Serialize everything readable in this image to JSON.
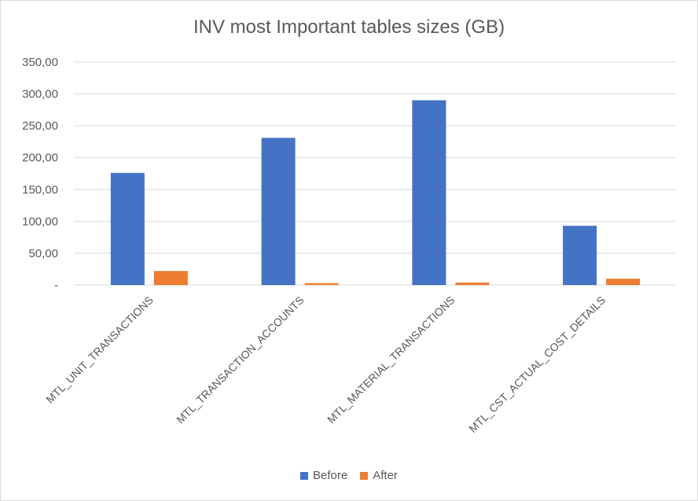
{
  "chart_data": {
    "type": "bar",
    "title": "INV most Important tables sizes (GB)",
    "categories": [
      "MTL_UNIT_TRANSACTIONS",
      "MTL_TRANSACTION_ACCOUNTS",
      "MTL_MATERIAL_TRANSACTIONS",
      "MTL_CST_ACTUAL_COST_DETAILS"
    ],
    "series": [
      {
        "name": "Before",
        "color": "#4472c4",
        "values": [
          176,
          231,
          290,
          93
        ]
      },
      {
        "name": "After",
        "color": "#ed7d31",
        "values": [
          22,
          3,
          4,
          10
        ]
      }
    ],
    "ylim": [
      0,
      350
    ],
    "y_ticks": [
      "-",
      "50,00",
      "100,00",
      "150,00",
      "200,00",
      "250,00",
      "300,00",
      "350,00"
    ],
    "y_tick_values": [
      0,
      50,
      100,
      150,
      200,
      250,
      300,
      350
    ],
    "grid": true,
    "legend_position": "bottom"
  }
}
